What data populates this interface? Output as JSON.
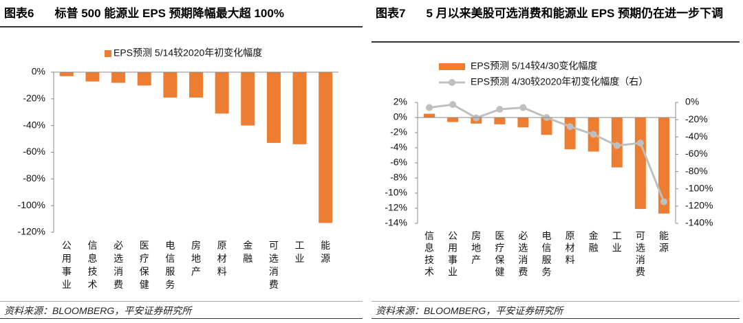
{
  "chart_data": [
    {
      "type": "bar",
      "figure_label": "图表6",
      "title": "标普 500 能源业 EPS 预期降幅最大超 100%",
      "source": "资料来源：BLOOMBERG，平安证券研究所",
      "categories": [
        "公用事业",
        "信息技术",
        "必选消费",
        "医疗保健",
        "电信服务",
        "房地产",
        "原材料",
        "金融",
        "可选消费",
        "工业",
        "能源"
      ],
      "series": [
        {
          "name": "EPS预测 5/14较2020年初变化幅度",
          "color": "#ed7d31",
          "values": [
            -3,
            -7,
            -8,
            -10,
            -19,
            -19,
            -31,
            -40,
            -53,
            -54,
            -113
          ]
        }
      ],
      "ylim": [
        -120,
        0
      ],
      "yticks": [
        {
          "value": 0,
          "label": "0%"
        },
        {
          "value": -20,
          "label": "-20%"
        },
        {
          "value": -40,
          "label": "-40%"
        },
        {
          "value": -60,
          "label": "-60%"
        },
        {
          "value": -80,
          "label": "-80%"
        },
        {
          "value": -100,
          "label": "-100%"
        },
        {
          "value": -120,
          "label": "-120%"
        }
      ],
      "legend": "top"
    },
    {
      "type": "combo",
      "figure_label": "图表7",
      "title": "5 月以来美股可选消费和能源业 EPS 预期仍在进一步下调",
      "source": "资料来源：BLOOMBERG，平安证券研究所",
      "categories": [
        "信息技术",
        "公用事业",
        "房地产",
        "医疗保健",
        "必选消费",
        "电信服务",
        "原材料",
        "金融",
        "工业",
        "可选消费",
        "能源"
      ],
      "series": [
        {
          "name": "EPS预测 5/14较4/30变化幅度",
          "color": "#ed7d31",
          "values": [
            0.5,
            -0.6,
            -0.8,
            -0.9,
            -1.3,
            -2.3,
            -4.2,
            -4.5,
            -6.6,
            -12.1,
            -12.7
          ]
        },
        {
          "name": "EPS预测 4/30较2020年初变化幅度（右）",
          "color": "#bfbfbf",
          "axis": "y2",
          "values": [
            -6,
            -2.5,
            -18,
            -8,
            -6,
            -17.5,
            -28,
            -37,
            -50,
            -47,
            -115
          ]
        }
      ],
      "ylim": [
        -14,
        2
      ],
      "yticks": [
        {
          "value": 2,
          "label": "2%"
        },
        {
          "value": 0,
          "label": "0%"
        },
        {
          "value": -2,
          "label": "-2%"
        },
        {
          "value": -4,
          "label": "-4%"
        },
        {
          "value": -6,
          "label": "-6%"
        },
        {
          "value": -8,
          "label": "-8%"
        },
        {
          "value": -10,
          "label": "-10%"
        },
        {
          "value": -12,
          "label": "-12%"
        },
        {
          "value": -14,
          "label": "-14%"
        }
      ],
      "y2lim": [
        -140,
        0
      ],
      "y2ticks": [
        {
          "value": 0,
          "label": "0%"
        },
        {
          "value": -20,
          "label": "-20%"
        },
        {
          "value": -40,
          "label": "-40%"
        },
        {
          "value": -60,
          "label": "-60%"
        },
        {
          "value": -80,
          "label": "-80%"
        },
        {
          "value": -100,
          "label": "-100%"
        },
        {
          "value": -120,
          "label": "-120%"
        },
        {
          "value": -140,
          "label": "-140%"
        }
      ],
      "legend": "top"
    }
  ]
}
